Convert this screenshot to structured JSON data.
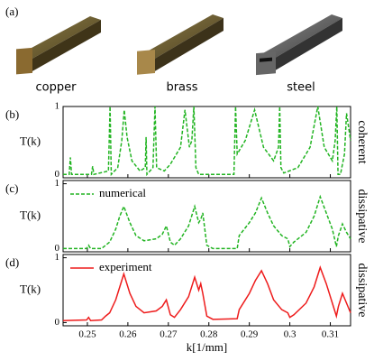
{
  "panel_a": {
    "label": "(a)",
    "samples": [
      "copper",
      "brass",
      "steel"
    ]
  },
  "chart_data": [
    {
      "type": "line",
      "panel_label": "(b)",
      "side_label": "coherent",
      "ylabel": "T(k)",
      "xlim": [
        0.244,
        0.315
      ],
      "ylim": [
        -0.05,
        1.0
      ],
      "yticks": [
        0,
        1
      ],
      "x": [
        0.244,
        0.2455,
        0.2458,
        0.2461,
        0.251,
        0.2513,
        0.2516,
        0.2552,
        0.2556,
        0.2559,
        0.2575,
        0.2585,
        0.2591,
        0.2598,
        0.261,
        0.263,
        0.2643,
        0.2645,
        0.2647,
        0.2662,
        0.2667,
        0.2671,
        0.269,
        0.2705,
        0.273,
        0.2741,
        0.2752,
        0.2758,
        0.2763,
        0.2768,
        0.2775,
        0.2862,
        0.2866,
        0.287,
        0.289,
        0.2913,
        0.2935,
        0.296,
        0.2972,
        0.2975,
        0.2978,
        0.2985,
        0.302,
        0.305,
        0.3069,
        0.3085,
        0.3105,
        0.3112,
        0.3116,
        0.3119,
        0.3125,
        0.3135,
        0.314,
        0.315
      ],
      "series": [
        {
          "color": "#22b422",
          "dash": true,
          "values": [
            0,
            0,
            0.25,
            0,
            0,
            0.12,
            0,
            0.05,
            1,
            0,
            0.1,
            0.5,
            0.95,
            0.55,
            0.2,
            0.05,
            0.1,
            0.55,
            0,
            0.1,
            1,
            0.1,
            0.05,
            0.15,
            0.4,
            0.95,
            0.4,
            0.5,
            1,
            0.1,
            0,
            0,
            1,
            0.3,
            0.5,
            0.95,
            0.4,
            0.2,
            0.4,
            1,
            0.1,
            0.02,
            0.1,
            0.4,
            1,
            0.4,
            0.2,
            0.5,
            1,
            0,
            0,
            0.3,
            0.9,
            0.5
          ]
        }
      ]
    },
    {
      "type": "line",
      "panel_label": "(c)",
      "side_label": "dissipative",
      "ylabel": "T(k)",
      "xlim": [
        0.244,
        0.315
      ],
      "ylim": [
        -0.05,
        1.05
      ],
      "yticks": [
        0,
        1
      ],
      "x": [
        0.244,
        0.2498,
        0.2503,
        0.2508,
        0.2535,
        0.2545,
        0.2555,
        0.257,
        0.258,
        0.259,
        0.2605,
        0.262,
        0.264,
        0.267,
        0.2685,
        0.2695,
        0.2705,
        0.2715,
        0.273,
        0.275,
        0.2765,
        0.2775,
        0.278,
        0.2785,
        0.2795,
        0.281,
        0.287,
        0.2875,
        0.29,
        0.2915,
        0.293,
        0.2945,
        0.296,
        0.298,
        0.2995,
        0.3,
        0.301,
        0.304,
        0.306,
        0.3075,
        0.309,
        0.3105,
        0.3115,
        0.312,
        0.313,
        0.314,
        0.315
      ],
      "series": [
        {
          "name": "numerical",
          "color": "#22b422",
          "dash": true,
          "values": [
            0,
            0,
            0.05,
            0,
            0,
            0.05,
            0.1,
            0.3,
            0.5,
            0.65,
            0.4,
            0.2,
            0.12,
            0.15,
            0.22,
            0.35,
            0.1,
            0.05,
            0.15,
            0.35,
            0.65,
            0.4,
            0.45,
            0.55,
            0.05,
            0,
            0,
            0.2,
            0.4,
            0.55,
            0.78,
            0.55,
            0.35,
            0.2,
            0.15,
            0.03,
            0.1,
            0.25,
            0.5,
            0.8,
            0.55,
            0.3,
            0.03,
            0.2,
            0.38,
            0.25,
            0.15
          ]
        }
      ]
    },
    {
      "type": "line",
      "panel_label": "(d)",
      "side_label": "dissipative",
      "ylabel": "T(k)",
      "xlabel": "k[1/mm]",
      "xlim": [
        0.244,
        0.315
      ],
      "ylim": [
        -0.05,
        1.05
      ],
      "yticks": [
        0,
        1
      ],
      "xticks": [
        0.25,
        0.26,
        0.27,
        0.28,
        0.29,
        0.3,
        0.31
      ],
      "x": [
        0.244,
        0.2498,
        0.2503,
        0.2508,
        0.2535,
        0.2545,
        0.2555,
        0.257,
        0.258,
        0.259,
        0.2605,
        0.262,
        0.264,
        0.267,
        0.2685,
        0.2695,
        0.2705,
        0.2715,
        0.273,
        0.275,
        0.2765,
        0.2775,
        0.278,
        0.2785,
        0.2795,
        0.281,
        0.287,
        0.2875,
        0.29,
        0.2915,
        0.293,
        0.2945,
        0.296,
        0.298,
        0.2995,
        0.3,
        0.301,
        0.304,
        0.306,
        0.3075,
        0.309,
        0.3105,
        0.3115,
        0.312,
        0.313,
        0.314,
        0.315
      ],
      "series": [
        {
          "name": "experiment",
          "color": "#ee1c1c",
          "dash": false,
          "values": [
            0.03,
            0.04,
            0.08,
            0.03,
            0.04,
            0.1,
            0.15,
            0.35,
            0.55,
            0.75,
            0.45,
            0.25,
            0.15,
            0.18,
            0.25,
            0.35,
            0.12,
            0.08,
            0.2,
            0.4,
            0.7,
            0.5,
            0.6,
            0.45,
            0.1,
            0.05,
            0.06,
            0.2,
            0.45,
            0.65,
            0.8,
            0.6,
            0.35,
            0.2,
            0.15,
            0.08,
            0.12,
            0.3,
            0.55,
            0.85,
            0.6,
            0.3,
            0.1,
            0.25,
            0.45,
            0.3,
            0.15
          ]
        }
      ]
    }
  ]
}
